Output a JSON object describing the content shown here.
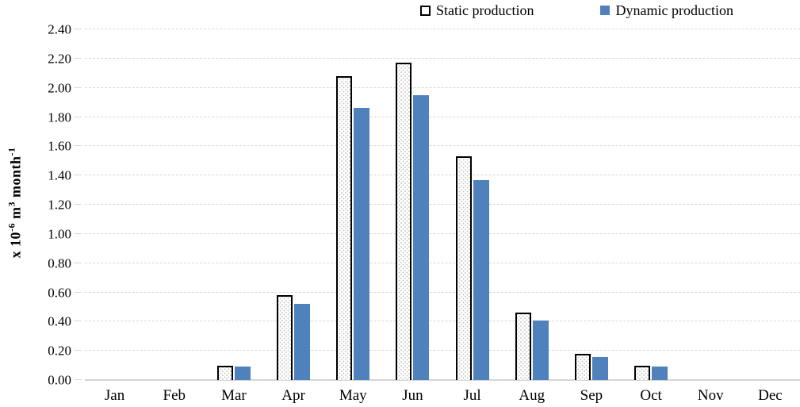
{
  "chart_data": {
    "type": "bar",
    "title": "",
    "xlabel": "",
    "ylabel": "x 10⁻⁶ m³ month⁻¹",
    "ylabel_parts": [
      {
        "t": "x 10",
        "sup": false
      },
      {
        "t": "-6",
        "sup": true
      },
      {
        "t": " m",
        "sup": false
      },
      {
        "t": "3",
        "sup": true
      },
      {
        "t": " month",
        "sup": false
      },
      {
        "t": "-1",
        "sup": true
      }
    ],
    "categories": [
      "Jan",
      "Feb",
      "Mar",
      "Apr",
      "May",
      "Jun",
      "Jul",
      "Aug",
      "Sep",
      "Oct",
      "Nov",
      "Dec"
    ],
    "series": [
      {
        "name": "Static production",
        "style": "white-dotted-pattern-black-border",
        "values": [
          0,
          0,
          0.1,
          0.58,
          2.08,
          2.17,
          1.53,
          0.46,
          0.18,
          0.1,
          0,
          0
        ]
      },
      {
        "name": "Dynamic production",
        "style": "solid-blue",
        "color": "#4F81BD",
        "values": [
          0,
          0,
          0.09,
          0.52,
          1.86,
          1.95,
          1.37,
          0.41,
          0.16,
          0.09,
          0,
          0
        ]
      }
    ],
    "ylim": [
      0.0,
      2.4
    ],
    "ytick_step": 0.2,
    "ytick_labels": [
      "0.00",
      "0.20",
      "0.40",
      "0.60",
      "0.80",
      "1.00",
      "1.20",
      "1.40",
      "1.60",
      "1.80",
      "2.00",
      "2.20",
      "2.40"
    ],
    "grid": "horizontal-dashed",
    "legend_position": "top"
  },
  "colors": {
    "bar_blue": "#4F81BD",
    "bar_border": "#000000",
    "gridline": "#D9D9D9",
    "axis_line": "#D5D5D5",
    "text": "#000000",
    "background": "#FFFFFF"
  }
}
